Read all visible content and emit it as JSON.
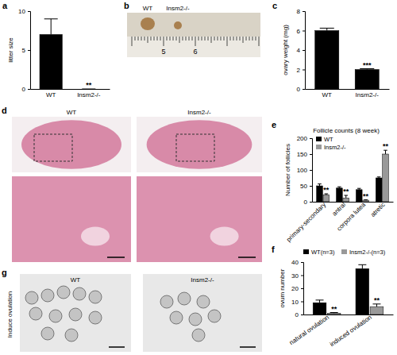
{
  "panel_labels": [
    "a",
    "b",
    "c",
    "d",
    "e",
    "f",
    "g"
  ],
  "images": [
    {
      "labels": [
        "WT",
        "Insm2-/-"
      ],
      "scale": [
        5,
        6
      ]
    },
    {
      "labels": [
        "WT",
        "Insm2-/-"
      ]
    },
    {
      "title": "Induce ovulation",
      "labels": [
        "WT",
        "Insm2-/-"
      ]
    }
  ],
  "chart_data": [
    {
      "type": "bar",
      "ylabel": "litter size",
      "categories": [
        "WT",
        "Insm2-/-"
      ],
      "values": [
        7,
        0
      ],
      "errors": [
        2,
        0
      ],
      "significance": [
        null,
        "**"
      ],
      "color": "#000000",
      "ylim": [
        0,
        10
      ],
      "yticks": [
        0,
        5,
        10
      ]
    },
    {
      "type": "bar",
      "ylabel": "ovary weight (mg)",
      "categories": [
        "WT",
        "Insm2-/-"
      ],
      "values": [
        6,
        2
      ],
      "errors": [
        0.25,
        0.08
      ],
      "significance": [
        null,
        "***"
      ],
      "color": "#000000",
      "ylim": [
        0,
        8
      ],
      "yticks": [
        0,
        2,
        4,
        6,
        8
      ]
    },
    {
      "type": "bar",
      "title": "Follicle counts (8 week)",
      "ylabel": "Number of follicles",
      "categories": [
        "primary-secondary",
        "antral",
        "corpora lutea",
        "atretic"
      ],
      "series": [
        {
          "name": "WT",
          "color": "#000000",
          "values": [
            50,
            43,
            38,
            75
          ],
          "errors": [
            6,
            4,
            4,
            3
          ]
        },
        {
          "name": "Insm2-/-",
          "color": "#999999",
          "values": [
            22,
            12,
            5,
            150
          ],
          "errors": [
            3,
            8,
            1,
            12
          ],
          "significance": [
            "**",
            "**",
            "**",
            "**"
          ]
        }
      ],
      "legend": "upper left",
      "ylim": [
        0,
        200
      ],
      "yticks": [
        0,
        50,
        100,
        150,
        200
      ]
    },
    {
      "type": "bar",
      "ylabel": "ovum number",
      "categories": [
        "natural ovulation",
        "induced ovulation"
      ],
      "series": [
        {
          "name": "WT(n=3)",
          "color": "#000000",
          "values": [
            9,
            35
          ],
          "errors": [
            2,
            3
          ]
        },
        {
          "name": "Insm2-/-(n=3)",
          "color": "#999999",
          "values": [
            1,
            6
          ],
          "errors": [
            0.5,
            2
          ],
          "significance": [
            "**",
            "**"
          ]
        }
      ],
      "legend": "top",
      "ylim": [
        0,
        40
      ],
      "yticks": [
        0,
        10,
        20,
        30,
        40
      ]
    }
  ]
}
